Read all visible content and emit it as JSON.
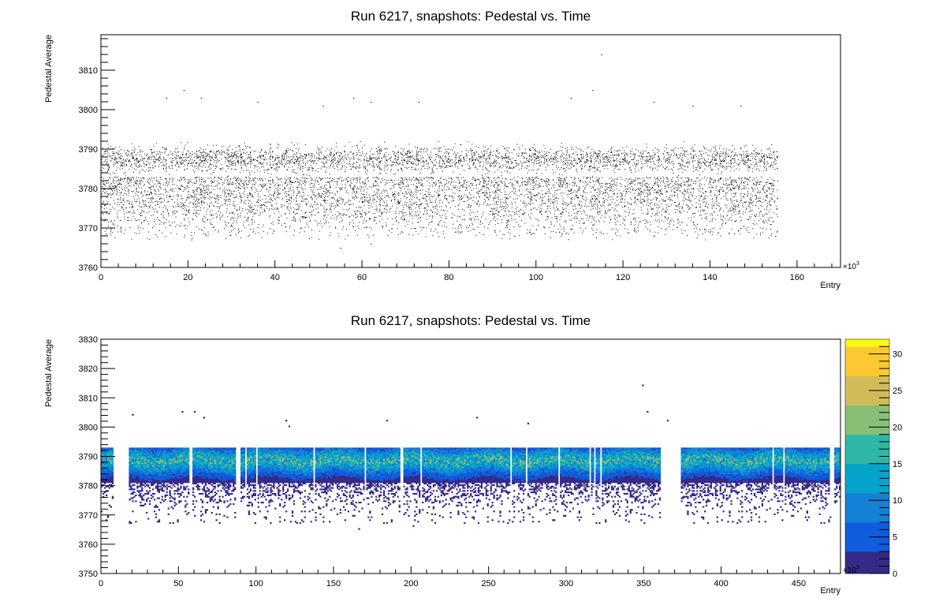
{
  "chart_data": [
    {
      "type": "scatter",
      "title": "Run 6217, snapshots: Pedestal vs. Time",
      "xlabel": "Entry",
      "ylabel": "Pedestal Average",
      "x_exponent_label": "×10",
      "x_exponent_power": "3",
      "xlim": [
        0,
        170
      ],
      "ylim": [
        3760,
        3819
      ],
      "x_ticks": [
        0,
        20,
        40,
        60,
        80,
        100,
        120,
        140,
        160
      ],
      "y_ticks": [
        3760,
        3770,
        3780,
        3790,
        3800,
        3810
      ],
      "x_tick_labels": [
        "0",
        "20",
        "40",
        "60",
        "80",
        "100",
        "120",
        "140",
        "160"
      ],
      "y_tick_labels": [
        "3760",
        "3770",
        "3780",
        "3790",
        "3800",
        "3810"
      ],
      "series_color": "#000000",
      "entry_range": [
        0,
        155.5
      ],
      "dense_band": [
        3783,
        3792
      ],
      "sparse_tail": [
        3767,
        3783
      ],
      "outliers": [
        [
          15,
          3803
        ],
        [
          19,
          3805
        ],
        [
          23,
          3803
        ],
        [
          36,
          3802
        ],
        [
          51,
          3801
        ],
        [
          58,
          3803
        ],
        [
          62,
          3802
        ],
        [
          73,
          3802
        ],
        [
          108,
          3803
        ],
        [
          113,
          3805
        ],
        [
          115,
          3814
        ],
        [
          127,
          3802
        ],
        [
          136,
          3801
        ],
        [
          147,
          3801
        ],
        [
          55,
          3765
        ],
        [
          62,
          3766
        ],
        [
          95,
          3768
        ],
        [
          72,
          3770
        ],
        [
          155,
          3768
        ]
      ],
      "grid": false,
      "legend": "none"
    },
    {
      "type": "heatmap",
      "title": "Run 6217, snapshots: Pedestal vs. Time",
      "xlabel": "Entry",
      "ylabel": "Pedestal Average",
      "x_exponent_label": "×10",
      "x_exponent_power": "3",
      "xlim": [
        0,
        477
      ],
      "ylim": [
        3750,
        3830
      ],
      "x_ticks": [
        0,
        50,
        100,
        150,
        200,
        250,
        300,
        350,
        400,
        450
      ],
      "y_ticks": [
        3750,
        3760,
        3770,
        3780,
        3790,
        3800,
        3810,
        3820,
        3830
      ],
      "x_tick_labels": [
        "0",
        "50",
        "100",
        "150",
        "200",
        "250",
        "300",
        "350",
        "400",
        "450"
      ],
      "y_tick_labels": [
        "3750",
        "3760",
        "3770",
        "3780",
        "3790",
        "3800",
        "3810",
        "3820",
        "3830"
      ],
      "z_range": [
        0,
        32
      ],
      "z_ticks": [
        0,
        5,
        10,
        15,
        20,
        25,
        30
      ],
      "z_tick_labels": [
        "0",
        "5",
        "10",
        "15",
        "20",
        "25",
        "30"
      ],
      "palette": [
        "#352a87",
        "#0f5cdd",
        "#1481d6",
        "#06a4ca",
        "#2eb7a4",
        "#87bf77",
        "#d1bb59",
        "#fec832",
        "#f9fb0e"
      ],
      "segments": [
        [
          0,
          8
        ],
        [
          18,
          57
        ],
        [
          59,
          87
        ],
        [
          90,
          93
        ],
        [
          94,
          100
        ],
        [
          101,
          137
        ],
        [
          138,
          170
        ],
        [
          171,
          193
        ],
        [
          195,
          206
        ],
        [
          207,
          264
        ],
        [
          265,
          274
        ],
        [
          275,
          295
        ],
        [
          296,
          315
        ],
        [
          316,
          318
        ],
        [
          319,
          322
        ],
        [
          323,
          361
        ],
        [
          374,
          433
        ],
        [
          434,
          440
        ],
        [
          441,
          470
        ],
        [
          473,
          477
        ]
      ],
      "band": [
        3781,
        3793
      ],
      "tail": [
        3767,
        3781
      ],
      "outliers": [
        [
          20,
          3804
        ],
        [
          52,
          3805
        ],
        [
          60,
          3805
        ],
        [
          66,
          3803
        ],
        [
          119,
          3802
        ],
        [
          121,
          3800
        ],
        [
          184,
          3802
        ],
        [
          242,
          3803
        ],
        [
          275,
          3801
        ],
        [
          349,
          3814
        ],
        [
          352,
          3805
        ],
        [
          365,
          3802
        ],
        [
          126,
          3767
        ],
        [
          166,
          3765
        ],
        [
          201,
          3766
        ],
        [
          235,
          3769
        ],
        [
          291,
          3768
        ],
        [
          470,
          3769
        ]
      ],
      "grid": false,
      "legend": "colorbar-right"
    }
  ]
}
